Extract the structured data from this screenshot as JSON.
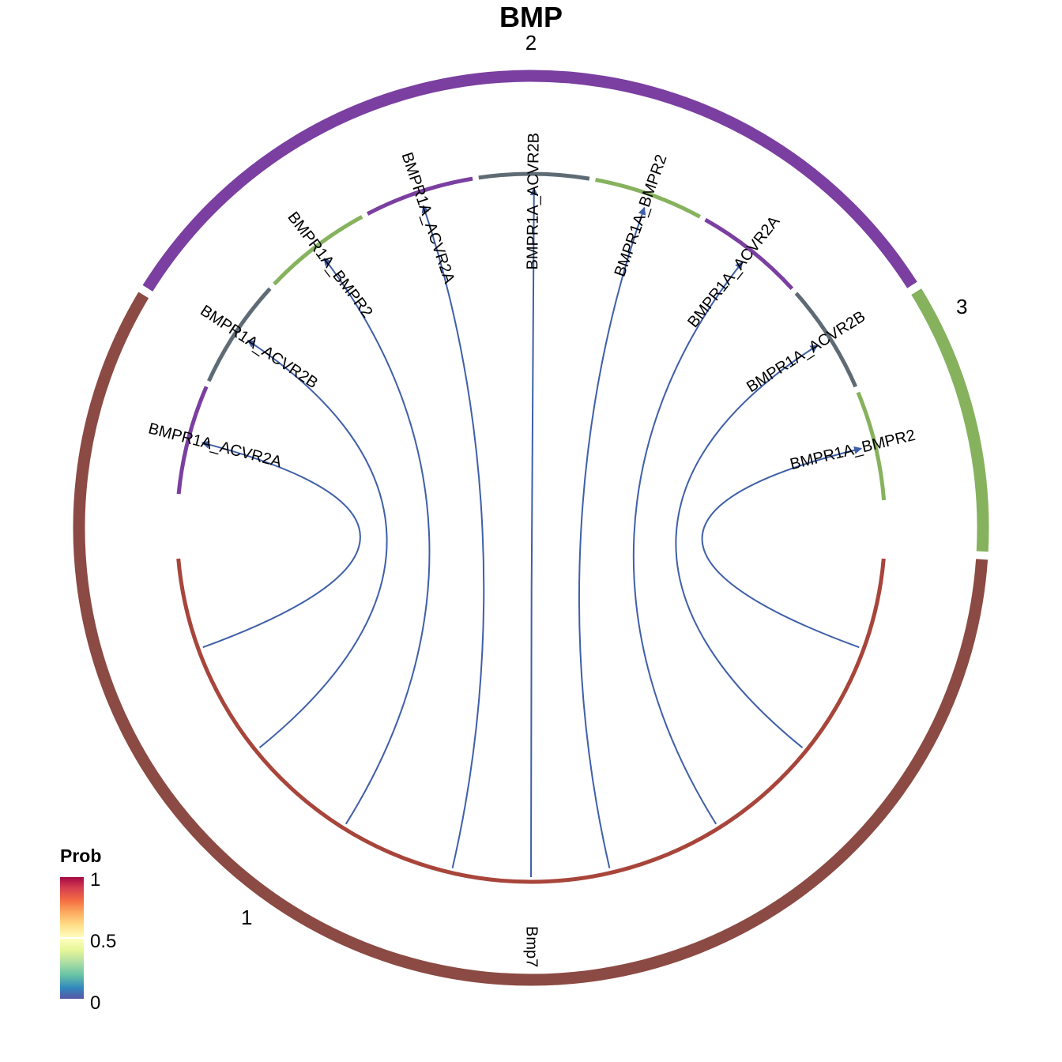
{
  "title": "BMP",
  "colors": {
    "group_1": "#8B4A43",
    "group_2": "#7A3FA0",
    "group_3": "#86B25E",
    "acvr2a": "#7A3FA0",
    "acvr2b": "#5F6B74",
    "bmpr2": "#86B25E",
    "bmp7": "#A8453B",
    "link": "#3F5FA8"
  },
  "groups": [
    {
      "label": "1",
      "color_key": "group_1"
    },
    {
      "label": "2",
      "color_key": "group_2"
    },
    {
      "label": "3",
      "color_key": "group_3"
    }
  ],
  "sectors": [
    {
      "label": "BMPR1A_ACVR2A",
      "color_key": "acvr2a"
    },
    {
      "label": "BMPR1A_ACVR2B",
      "color_key": "acvr2b"
    },
    {
      "label": "BMPR1A_BMPR2",
      "color_key": "bmpr2"
    },
    {
      "label": "BMPR1A_ACVR2A",
      "color_key": "acvr2a"
    },
    {
      "label": "BMPR1A_ACVR2B",
      "color_key": "acvr2b"
    },
    {
      "label": "BMPR1A_BMPR2",
      "color_key": "bmpr2"
    },
    {
      "label": "BMPR1A_ACVR2A",
      "color_key": "acvr2a"
    },
    {
      "label": "BMPR1A_ACVR2B",
      "color_key": "acvr2b"
    },
    {
      "label": "BMPR1A_BMPR2",
      "color_key": "bmpr2"
    }
  ],
  "source": {
    "label": "Bmp7",
    "color_key": "bmp7"
  },
  "legend": {
    "title": "Prob",
    "tick_labels": [
      "1",
      "0.5",
      "0"
    ]
  }
}
